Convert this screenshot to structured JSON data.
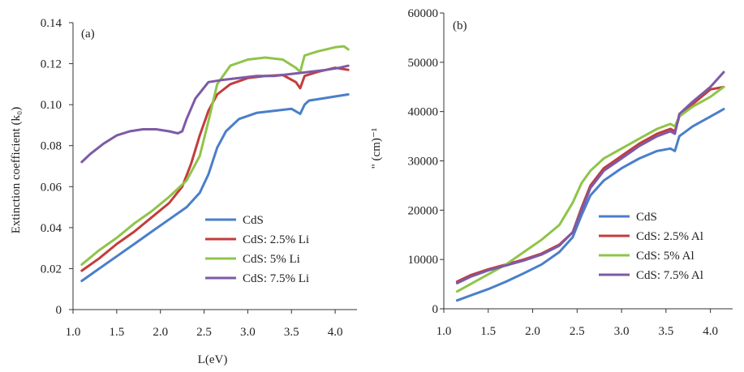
{
  "colors": {
    "blue": "#4a7fc9",
    "red": "#c43c3c",
    "green": "#8fc44a",
    "purple": "#7d5aa6",
    "axis": "#333333"
  },
  "chart_data": [
    {
      "type": "line",
      "panel_label": "(a)",
      "xlabel": "L(eV)",
      "ylabel": "Extinction coefficient (k₀)",
      "xlim": [
        1.0,
        4.25
      ],
      "ylim": [
        0,
        0.14
      ],
      "xticks": [
        "1.0",
        "1.5",
        "2.0",
        "2.5",
        "3.0",
        "3.5",
        "4.0"
      ],
      "xtick_values": [
        1.0,
        1.5,
        2.0,
        2.5,
        3.0,
        3.5,
        4.0
      ],
      "yticks": [
        "0",
        "0.02",
        "0.04",
        "0.06",
        "0.08",
        "0.10",
        "0.12",
        "0.14"
      ],
      "ytick_values": [
        0,
        0.02,
        0.04,
        0.06,
        0.08,
        0.1,
        0.12,
        0.14
      ],
      "grid": false,
      "legend_position": "bottom-right",
      "series": [
        {
          "name": "CdS",
          "color": "#4a7fc9",
          "x": [
            1.1,
            1.3,
            1.5,
            1.7,
            1.9,
            2.1,
            2.3,
            2.45,
            2.55,
            2.65,
            2.75,
            2.9,
            3.1,
            3.3,
            3.5,
            3.6,
            3.65,
            3.7,
            3.85,
            4.0,
            4.15
          ],
          "y": [
            0.014,
            0.02,
            0.026,
            0.032,
            0.038,
            0.044,
            0.05,
            0.057,
            0.066,
            0.079,
            0.087,
            0.093,
            0.096,
            0.097,
            0.098,
            0.0955,
            0.1,
            0.102,
            0.103,
            0.104,
            0.105
          ]
        },
        {
          "name": "CdS: 2.5% Li",
          "color": "#c43c3c",
          "x": [
            1.1,
            1.3,
            1.5,
            1.7,
            1.9,
            2.1,
            2.25,
            2.35,
            2.45,
            2.55,
            2.65,
            2.8,
            3.0,
            3.2,
            3.4,
            3.55,
            3.6,
            3.65,
            3.8,
            4.0,
            4.15
          ],
          "y": [
            0.019,
            0.025,
            0.032,
            0.038,
            0.045,
            0.052,
            0.06,
            0.071,
            0.085,
            0.097,
            0.105,
            0.11,
            0.113,
            0.114,
            0.1145,
            0.111,
            0.108,
            0.114,
            0.116,
            0.118,
            0.117
          ]
        },
        {
          "name": "CdS: 5% Li",
          "color": "#8fc44a",
          "x": [
            1.1,
            1.3,
            1.5,
            1.7,
            1.9,
            2.1,
            2.3,
            2.45,
            2.55,
            2.65,
            2.8,
            3.0,
            3.2,
            3.4,
            3.55,
            3.6,
            3.65,
            3.8,
            4.0,
            4.1,
            4.15
          ],
          "y": [
            0.022,
            0.029,
            0.035,
            0.042,
            0.048,
            0.055,
            0.063,
            0.075,
            0.092,
            0.11,
            0.119,
            0.122,
            0.123,
            0.122,
            0.118,
            0.116,
            0.124,
            0.126,
            0.128,
            0.1285,
            0.127
          ]
        },
        {
          "name": "CdS: 7.5% Li",
          "color": "#7d5aa6",
          "x": [
            1.1,
            1.2,
            1.35,
            1.5,
            1.65,
            1.8,
            1.95,
            2.1,
            2.2,
            2.25,
            2.3,
            2.4,
            2.55,
            2.7,
            2.9,
            3.1,
            3.3,
            3.5,
            3.7,
            3.9,
            4.05,
            4.15
          ],
          "y": [
            0.072,
            0.076,
            0.081,
            0.085,
            0.087,
            0.088,
            0.088,
            0.087,
            0.086,
            0.087,
            0.093,
            0.103,
            0.111,
            0.112,
            0.113,
            0.114,
            0.114,
            0.115,
            0.116,
            0.117,
            0.118,
            0.119
          ]
        }
      ]
    },
    {
      "type": "line",
      "panel_label": "(b)",
      "xlabel": "",
      "ylabel": "\" (cm)⁻¹",
      "xlim": [
        1.0,
        4.25
      ],
      "ylim": [
        0,
        60000
      ],
      "xticks": [
        "1.0",
        "1.5",
        "2.0",
        "2.5",
        "3.0",
        "3.5",
        "4.0"
      ],
      "xtick_values": [
        1.0,
        1.5,
        2.0,
        2.5,
        3.0,
        3.5,
        4.0
      ],
      "yticks": [
        "0",
        "10000",
        "20000",
        "30000",
        "40000",
        "50000",
        "60000"
      ],
      "ytick_values": [
        0,
        10000,
        20000,
        30000,
        40000,
        50000,
        60000
      ],
      "grid": false,
      "legend_position": "bottom-right",
      "series": [
        {
          "name": "CdS",
          "color": "#4a7fc9",
          "x": [
            1.15,
            1.3,
            1.5,
            1.7,
            1.9,
            2.1,
            2.3,
            2.45,
            2.55,
            2.65,
            2.8,
            3.0,
            3.2,
            3.4,
            3.55,
            3.6,
            3.65,
            3.8,
            4.0,
            4.15
          ],
          "y": [
            1700,
            2700,
            4000,
            5500,
            7200,
            9000,
            11500,
            14500,
            19000,
            23000,
            26000,
            28500,
            30500,
            32000,
            32500,
            32000,
            35000,
            37000,
            39000,
            40500
          ]
        },
        {
          "name": "CdS: 2.5% Al",
          "color": "#c43c3c",
          "x": [
            1.15,
            1.3,
            1.5,
            1.7,
            1.9,
            2.1,
            2.3,
            2.45,
            2.55,
            2.65,
            2.8,
            3.0,
            3.2,
            3.4,
            3.55,
            3.6,
            3.65,
            3.8,
            4.0,
            4.15
          ],
          "y": [
            5500,
            6800,
            8000,
            9000,
            10000,
            11200,
            13000,
            15500,
            20500,
            25000,
            28500,
            31000,
            33500,
            35500,
            36500,
            36000,
            39000,
            41500,
            44500,
            45000
          ]
        },
        {
          "name": "CdS: 5% Al",
          "color": "#8fc44a",
          "x": [
            1.15,
            1.3,
            1.5,
            1.7,
            1.9,
            2.1,
            2.3,
            2.45,
            2.55,
            2.65,
            2.8,
            3.0,
            3.2,
            3.4,
            3.55,
            3.6,
            3.65,
            3.8,
            4.0,
            4.15
          ],
          "y": [
            3500,
            5000,
            7000,
            9000,
            11500,
            14000,
            17000,
            21500,
            25500,
            28000,
            30500,
            32500,
            34500,
            36500,
            37500,
            37000,
            39000,
            41000,
            43000,
            45000
          ]
        },
        {
          "name": "CdS: 7.5% Al",
          "color": "#7d5aa6",
          "x": [
            1.15,
            1.3,
            1.5,
            1.7,
            1.9,
            2.1,
            2.3,
            2.45,
            2.55,
            2.65,
            2.8,
            3.0,
            3.2,
            3.4,
            3.55,
            3.6,
            3.65,
            3.8,
            4.0,
            4.15
          ],
          "y": [
            5200,
            6500,
            7800,
            8800,
            9800,
            11000,
            12800,
            15500,
            20000,
            24500,
            28000,
            30500,
            33000,
            35000,
            36000,
            35500,
            39500,
            42000,
            45000,
            48000
          ]
        }
      ]
    }
  ]
}
